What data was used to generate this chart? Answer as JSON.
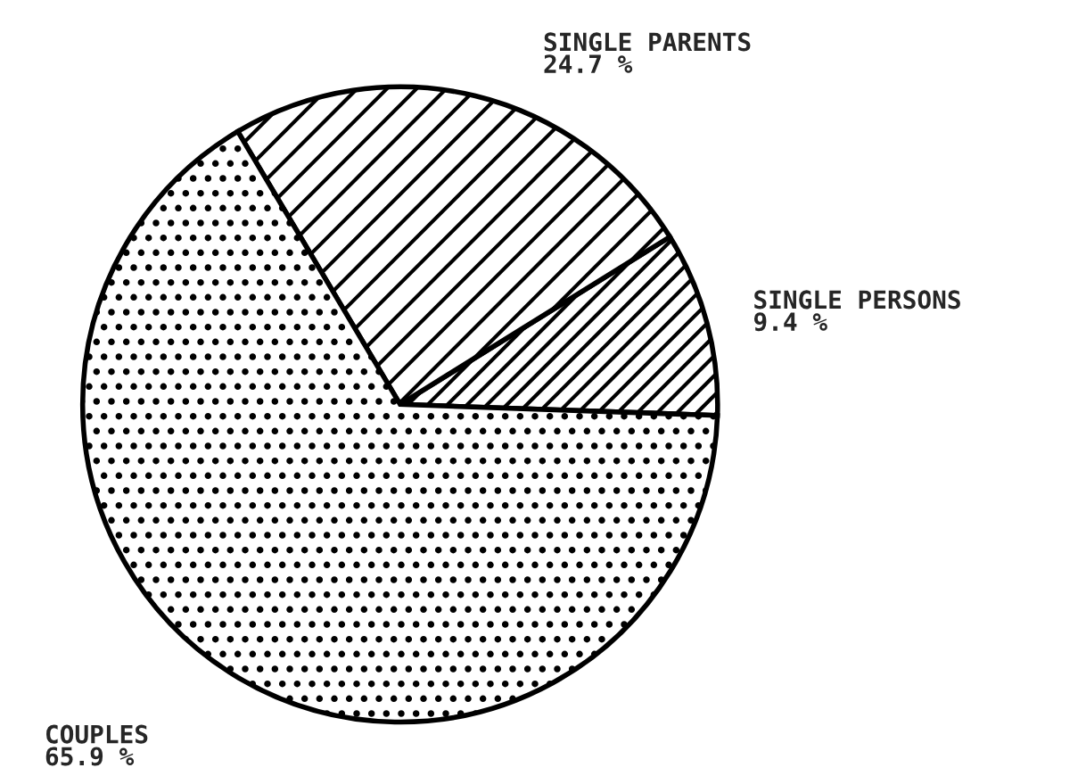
{
  "chart_data": {
    "type": "pie",
    "categories": [
      "SINGLE PERSONS",
      "SINGLE PARENTS",
      "COUPLES"
    ],
    "values": [
      9.4,
      24.7,
      65.9
    ],
    "value_labels": [
      "9.4 %",
      "24.7 %",
      "65.9 %"
    ]
  }
}
